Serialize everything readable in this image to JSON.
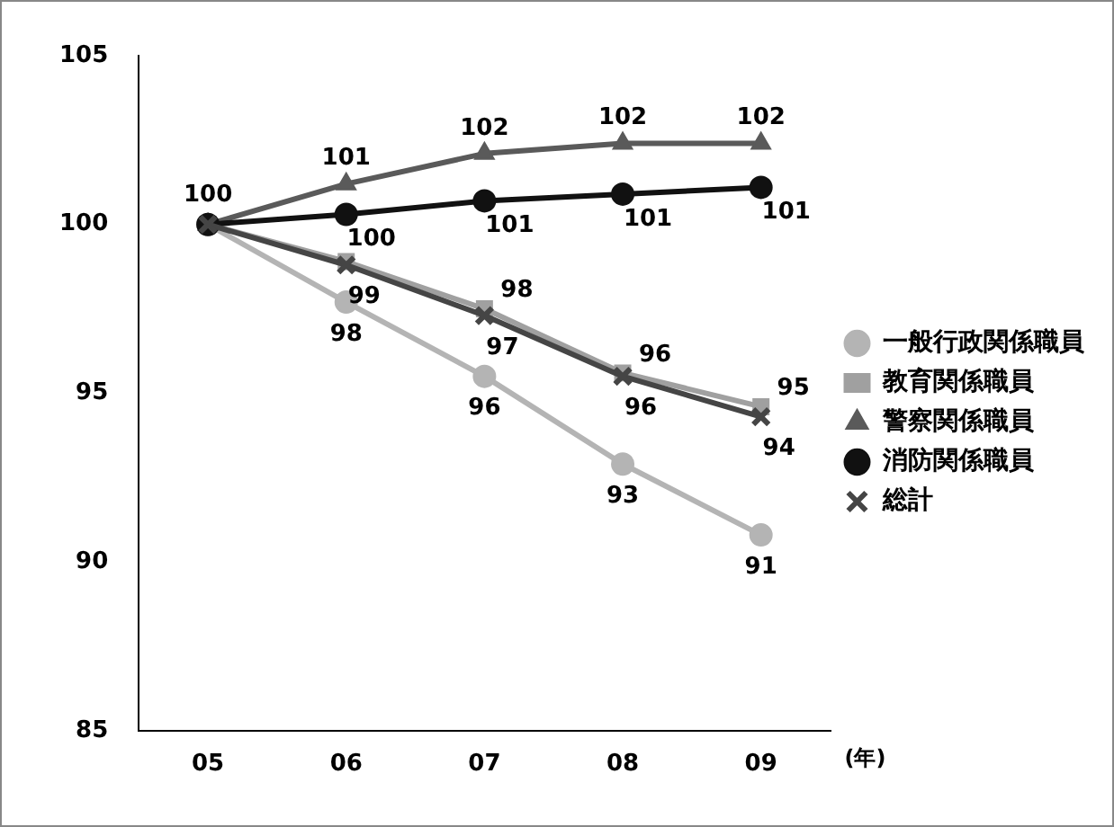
{
  "chart_data": {
    "type": "line",
    "categories": [
      "05",
      "06",
      "07",
      "08",
      "09"
    ],
    "xlabel": "(年)",
    "ylim": [
      85,
      105
    ],
    "yticks": [
      85,
      90,
      95,
      100,
      105
    ],
    "grid": false,
    "legend": "right",
    "line_style": "solid",
    "series": [
      {
        "name": "一般行政関係職員",
        "color": "#b4b4b4",
        "marker": "circle",
        "values": [
          100,
          97.7,
          95.5,
          92.9,
          90.8
        ],
        "value_labels": [
          null,
          "98",
          "96",
          "93",
          "91"
        ]
      },
      {
        "name": "教育関係職員",
        "color": "#a0a0a0",
        "marker": "square",
        "values": [
          100,
          98.9,
          97.5,
          95.6,
          94.6
        ],
        "value_labels": [
          null,
          null,
          "98",
          "96",
          "95"
        ]
      },
      {
        "name": "警察関係職員",
        "color": "#5a5a5a",
        "marker": "triangle",
        "values": [
          100,
          101.2,
          102.1,
          102.4,
          102.4
        ],
        "value_labels": [
          "100",
          "101",
          "102",
          "102",
          "102"
        ]
      },
      {
        "name": "消防関係職員",
        "color": "#111111",
        "marker": "circle",
        "values": [
          100,
          100.3,
          100.7,
          100.9,
          101.1
        ],
        "value_labels": [
          null,
          "100",
          "101",
          "101",
          "101"
        ]
      },
      {
        "name": "総計",
        "color": "#454545",
        "marker": "cross",
        "values": [
          100,
          98.8,
          97.3,
          95.5,
          94.3
        ],
        "value_labels": [
          null,
          "99",
          "97",
          "96",
          "94"
        ]
      }
    ]
  }
}
